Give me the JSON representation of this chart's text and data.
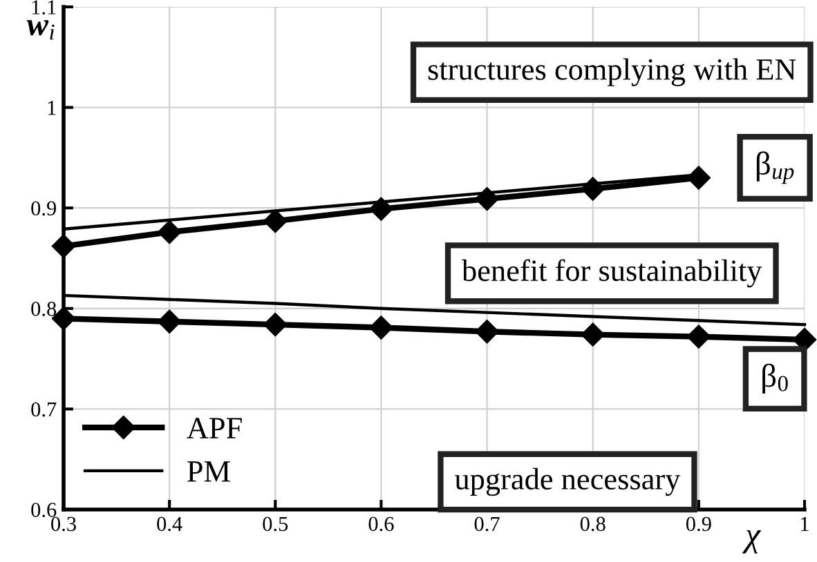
{
  "chart_data": {
    "type": "line",
    "xlabel": "χ",
    "ylabel": "w$_{i}$",
    "x": [
      0.3,
      0.4,
      0.5,
      0.6,
      0.7,
      0.8,
      0.9,
      1.0
    ],
    "series": [
      {
        "name": "APF",
        "color": "#000000",
        "marker": "diamond",
        "values": [
          0.862,
          0.876,
          0.887,
          0.899,
          0.909,
          0.919,
          0.93,
          null
        ]
      },
      {
        "color": "#000000",
        "marker": "diamond",
        "values": [
          0.79,
          0.787,
          0.784,
          0.781,
          0.777,
          0.774,
          0.772,
          0.769
        ]
      },
      {
        "name": "PM",
        "color": "#000000",
        "marker": "none",
        "values": [
          0.879,
          0.888,
          0.897,
          0.906,
          0.915,
          0.924,
          0.933,
          null
        ]
      },
      {
        "color": "#000000",
        "marker": "none",
        "values": [
          0.813,
          0.809,
          0.805,
          0.8,
          0.796,
          0.792,
          0.788,
          0.784
        ]
      }
    ],
    "annotations": [
      "structures complying with EN",
      "β$_{up}$",
      "benefit for sustainability",
      "β$_{0}$",
      "upgrade necessary"
    ],
    "xlim": [
      0.3,
      1
    ],
    "ylim": [
      0.6,
      1.1
    ],
    "xticks": [
      0.3,
      0.4,
      0.5,
      0.6,
      0.7,
      0.8,
      0.9,
      1
    ],
    "yticks": [
      0.6,
      0.7,
      0.8,
      0.9,
      1,
      1.1
    ],
    "grid": true,
    "legend": "bottom left",
    "line_style": "solid"
  }
}
